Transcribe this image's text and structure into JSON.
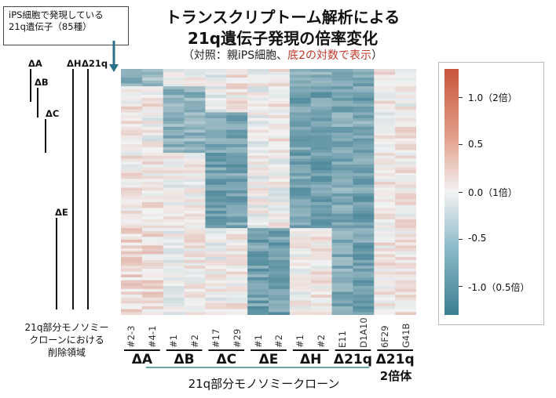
{
  "callout": {
    "line1": "iPS細胞で発現している",
    "line2": "21q遺伝子（85種）"
  },
  "title": {
    "line1": "トランスクリプトーム解析による",
    "line2": "21q遺伝子発現の倍率変化",
    "line3_prefix": "（対照：親iPS細胞、",
    "line3_highlight": "底2の対数で表示",
    "line3_suffix": "）"
  },
  "region_labels": [
    "ΔA",
    "ΔB",
    "ΔC",
    "ΔE",
    "ΔH",
    "Δ21q"
  ],
  "left_footnote": {
    "line1": "21q部分モノソミー",
    "line2": "クローンにおける",
    "line3": "削除領域"
  },
  "colorbar": {
    "ticks": [
      {
        "value": 1.0,
        "label": "1.0（2倍）"
      },
      {
        "value": 0.5,
        "label": "0.5"
      },
      {
        "value": 0.0,
        "label": "0.0（1倍）"
      },
      {
        "value": -0.5,
        "label": "-0.5"
      },
      {
        "value": -1.0,
        "label": "-1.0（0.5倍）"
      }
    ],
    "colors": {
      "high": "#c8553a",
      "mid": "#f2f2f2",
      "low": "#3c7d91"
    }
  },
  "groups": [
    {
      "label": "ΔA"
    },
    {
      "label": "ΔB"
    },
    {
      "label": "ΔC"
    },
    {
      "label": "ΔE"
    },
    {
      "label": "ΔH"
    },
    {
      "label": "Δ21q"
    },
    {
      "label": "Δ21q"
    }
  ],
  "bottom_labels": {
    "monosomy": "21q部分モノソミークローン",
    "disomy": "2倍体"
  },
  "chart_data": {
    "type": "heatmap",
    "title": "21q遺伝子発現の倍率変化",
    "columns": [
      "#2-3",
      "#4-1",
      "#1",
      "#2",
      "#17",
      "#29",
      "#1",
      "#2",
      "#1",
      "#2",
      "E11",
      "D1A10",
      "6F29",
      "G41B"
    ],
    "column_groups": [
      {
        "name": "ΔA",
        "columns": [
          "#2-3",
          "#4-1"
        ]
      },
      {
        "name": "ΔB",
        "columns": [
          "#1",
          "#2"
        ]
      },
      {
        "name": "ΔC",
        "columns": [
          "#17",
          "#29"
        ]
      },
      {
        "name": "ΔE",
        "columns": [
          "#1",
          "#2"
        ]
      },
      {
        "name": "ΔH",
        "columns": [
          "#1",
          "#2"
        ]
      },
      {
        "name": "Δ21q",
        "columns": [
          "E11",
          "D1A10"
        ]
      },
      {
        "name": "Δ21q 2倍体",
        "columns": [
          "6F29",
          "G41B"
        ]
      }
    ],
    "n_rows": 85,
    "value_range": [
      -1.3,
      1.3
    ],
    "row_blocks_approx": [
      {
        "rows": [
          0,
          5
        ],
        "mean_log2fc": [
          -0.7,
          -0.6,
          0.0,
          0.0,
          -0.1,
          0.1,
          0.0,
          0.1,
          -0.8,
          -0.8,
          -0.7,
          -0.8,
          0.1,
          0.1
        ]
      },
      {
        "rows": [
          6,
          14
        ],
        "mean_log2fc": [
          0.1,
          0.1,
          -0.7,
          -0.7,
          -0.1,
          0.1,
          0.0,
          0.1,
          -0.9,
          -0.9,
          -0.8,
          -0.9,
          0.1,
          0.0
        ]
      },
      {
        "rows": [
          15,
          28
        ],
        "mean_log2fc": [
          0.1,
          0.0,
          -0.7,
          -0.7,
          -0.8,
          -0.8,
          0.0,
          0.1,
          -0.8,
          -0.9,
          -0.8,
          -0.8,
          0.0,
          0.1
        ]
      },
      {
        "rows": [
          29,
          54
        ],
        "mean_log2fc": [
          0.1,
          0.1,
          0.0,
          0.0,
          -0.9,
          -0.9,
          0.0,
          0.0,
          -0.9,
          -0.9,
          -0.8,
          -0.9,
          0.1,
          0.1
        ]
      },
      {
        "rows": [
          55,
          84
        ],
        "mean_log2fc": [
          0.2,
          0.2,
          0.0,
          0.1,
          0.0,
          0.1,
          -0.9,
          -0.9,
          0.0,
          0.1,
          -0.8,
          -0.9,
          0.1,
          0.1
        ]
      }
    ]
  }
}
